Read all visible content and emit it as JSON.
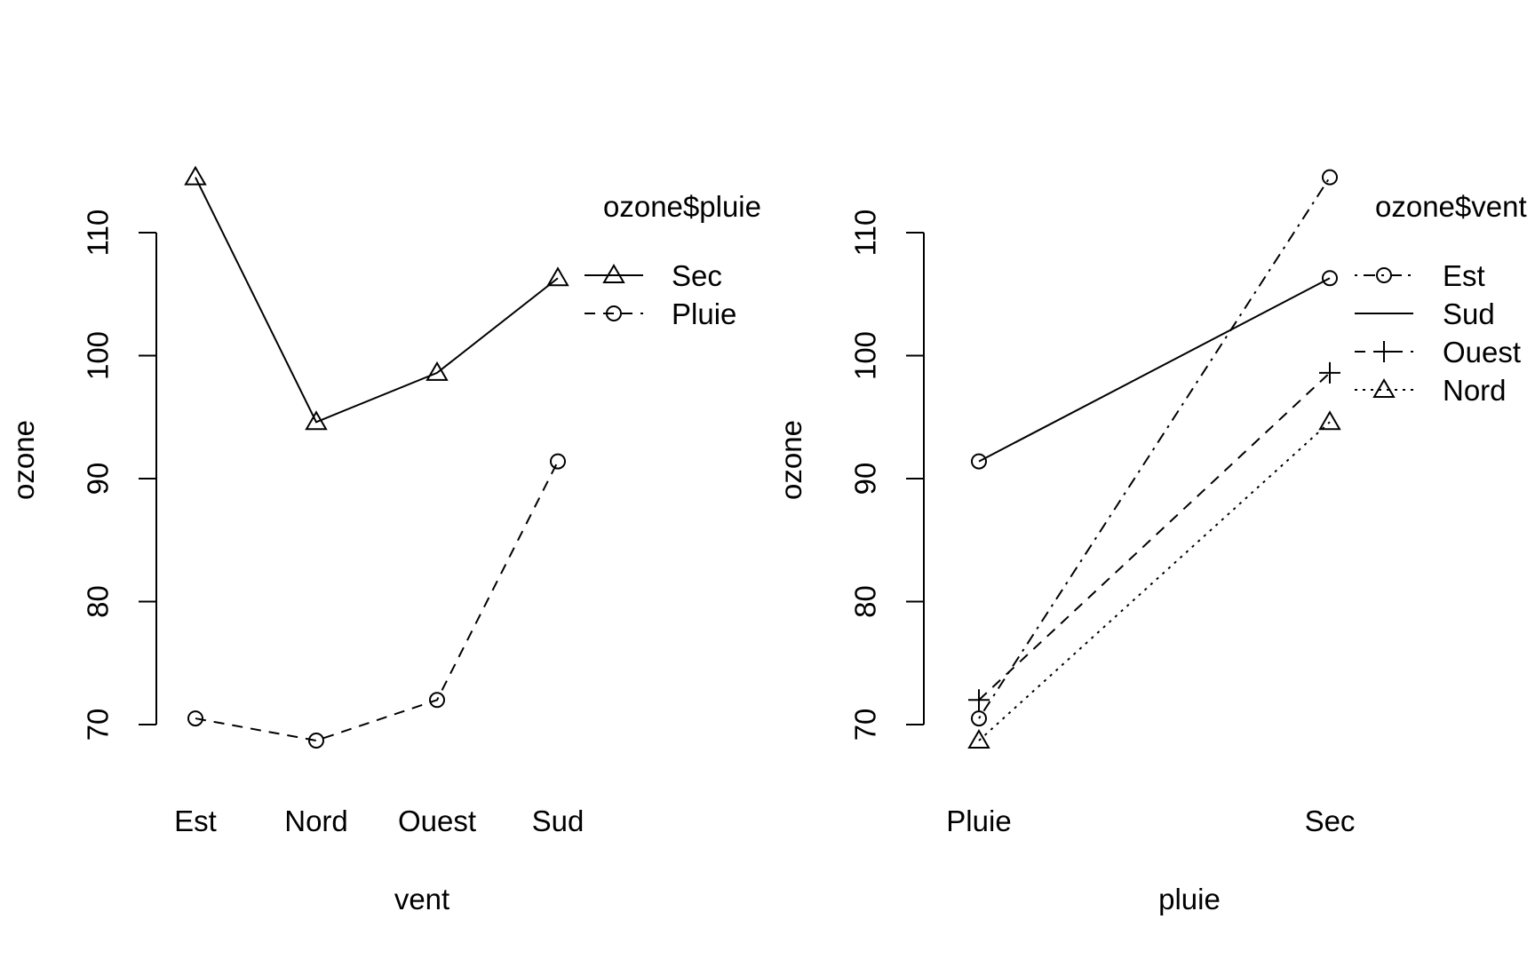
{
  "chart_data": [
    {
      "type": "line",
      "title": "",
      "xlabel": "vent",
      "ylabel": "ozone",
      "categories": [
        "Est",
        "Nord",
        "Ouest",
        "Sud"
      ],
      "yticks": [
        70,
        80,
        90,
        100,
        110
      ],
      "ylim": [
        66.2,
        117.3
      ],
      "grid": false,
      "legend": {
        "title": "ozone$pluie",
        "placement": "top-right",
        "entries": [
          "Sec",
          "Pluie"
        ]
      },
      "series": [
        {
          "name": "Sec",
          "values": [
            114.5,
            94.6,
            98.6,
            106.3
          ],
          "marker": "triangle",
          "dash": "solid"
        },
        {
          "name": "Pluie",
          "values": [
            70.5,
            68.7,
            72.0,
            91.4
          ],
          "marker": "circle",
          "dash": "dashed"
        }
      ]
    },
    {
      "type": "line",
      "title": "",
      "xlabel": "pluie",
      "ylabel": "ozone",
      "categories": [
        "Pluie",
        "Sec"
      ],
      "yticks": [
        70,
        80,
        90,
        100,
        110
      ],
      "ylim": [
        66.2,
        117.3
      ],
      "grid": false,
      "legend": {
        "title": "ozone$vent",
        "placement": "top-right",
        "entries": [
          "Est",
          "Sud",
          "Ouest",
          "Nord"
        ]
      },
      "series": [
        {
          "name": "Est",
          "values": [
            70.5,
            114.5
          ],
          "marker": "circle",
          "dash": "dotdash"
        },
        {
          "name": "Sud",
          "values": [
            91.4,
            106.3
          ],
          "marker": "circle",
          "dash": "solid"
        },
        {
          "name": "Ouest",
          "values": [
            72.0,
            98.6
          ],
          "marker": "plus",
          "dash": "dashed"
        },
        {
          "name": "Nord",
          "values": [
            68.7,
            94.6
          ],
          "marker": "triangle",
          "dash": "dotted"
        }
      ]
    }
  ]
}
